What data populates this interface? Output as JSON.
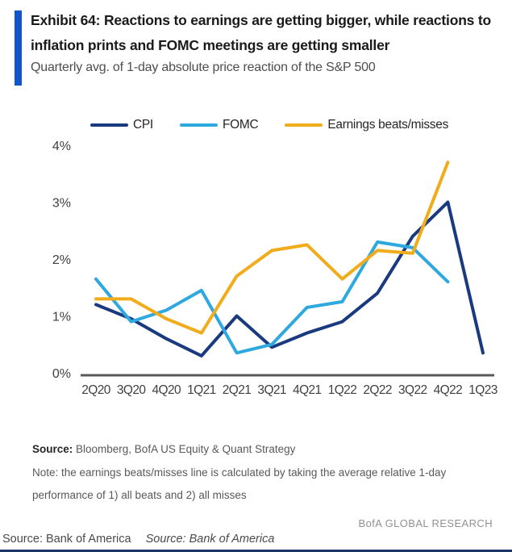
{
  "header": {
    "exhibit_title": "Exhibit 64: Reactions to earnings are getting bigger, while reactions to inflation prints and FOMC meetings are getting smaller",
    "subtitle": "Quarterly avg. of 1-day absolute price reaction of the S&P 500",
    "accent_color": "#1155CB"
  },
  "chart_data": {
    "type": "line",
    "title": "Quarterly avg. of 1-day absolute price reaction of the S&P 500",
    "categories": [
      "2Q20",
      "3Q20",
      "4Q20",
      "1Q21",
      "2Q21",
      "3Q21",
      "4Q21",
      "1Q22",
      "2Q22",
      "3Q22",
      "4Q22",
      "1Q23"
    ],
    "series": [
      {
        "name": "CPI",
        "color": "#1A3A80",
        "values": [
          1.2,
          0.95,
          0.6,
          0.3,
          1.0,
          0.45,
          0.7,
          0.9,
          1.4,
          2.4,
          3.0,
          0.35
        ]
      },
      {
        "name": "FOMC",
        "color": "#2EA9E0",
        "values": [
          1.65,
          0.9,
          1.1,
          1.45,
          0.35,
          0.5,
          1.15,
          1.25,
          2.3,
          2.2,
          1.6,
          null
        ]
      },
      {
        "name": "Earnings beats/misses",
        "color": "#F1AC1C",
        "values": [
          1.3,
          1.3,
          0.95,
          0.7,
          1.7,
          2.15,
          2.25,
          1.65,
          2.15,
          2.1,
          3.7,
          null
        ]
      }
    ],
    "yticks": [
      {
        "value": 0,
        "label": "0%"
      },
      {
        "value": 1,
        "label": "1%"
      },
      {
        "value": 2,
        "label": "2%"
      },
      {
        "value": 3,
        "label": "3%"
      },
      {
        "value": 4,
        "label": "4%"
      }
    ],
    "ylim": [
      0,
      4
    ],
    "grid": false,
    "legend_position": "top",
    "axis_color": "#58595B",
    "tick_label_color": "#404040"
  },
  "footer": {
    "source_label": "Source:",
    "source_text": " Bloomberg, BofA US Equity & Quant Strategy",
    "note_line1": "Note: the earnings beats/misses line is calculated by taking the average relative 1-day",
    "note_line2": "performance of 1) all beats and 2) all misses",
    "brand": "BofA GLOBAL RESEARCH"
  },
  "bottom_bar": {
    "source_1": "Source: Bank of America",
    "source_2": "Source: Bank of America",
    "border_color": "#1C3667"
  }
}
